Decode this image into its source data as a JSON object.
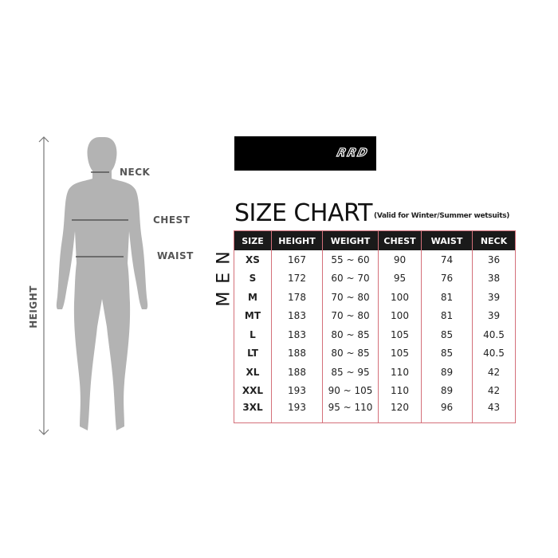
{
  "figure": {
    "labels": {
      "neck": "NECK",
      "chest": "CHEST",
      "waist": "WAIST",
      "height": "HEIGHT"
    },
    "silhouette_color": "#b3b3b3"
  },
  "logo": {
    "text": "RRD"
  },
  "title": "SIZE CHART",
  "subtitle": "(Valid for Winter/Summer wetsuits)",
  "side_label": "MEN",
  "table": {
    "headers": [
      "SIZE",
      "HEIGHT",
      "WEIGHT",
      "CHEST",
      "WAIST",
      "NECK"
    ],
    "rows": [
      [
        "XS",
        "167",
        "55 ~ 60",
        "90",
        "74",
        "36"
      ],
      [
        "S",
        "172",
        "60 ~ 70",
        "95",
        "76",
        "38"
      ],
      [
        "M",
        "178",
        "70 ~ 80",
        "100",
        "81",
        "39"
      ],
      [
        "MT",
        "183",
        "70 ~ 80",
        "100",
        "81",
        "39"
      ],
      [
        "L",
        "183",
        "80 ~ 85",
        "105",
        "85",
        "40.5"
      ],
      [
        "LT",
        "188",
        "80 ~ 85",
        "105",
        "85",
        "40.5"
      ],
      [
        "XL",
        "188",
        "85 ~ 95",
        "110",
        "89",
        "42"
      ],
      [
        "XXL",
        "193",
        "90 ~ 105",
        "110",
        "89",
        "42"
      ],
      [
        "3XL",
        "193",
        "95 ~ 110",
        "120",
        "96",
        "43"
      ]
    ],
    "border_color": "#d4707a",
    "header_bg": "#1a1a1a"
  }
}
